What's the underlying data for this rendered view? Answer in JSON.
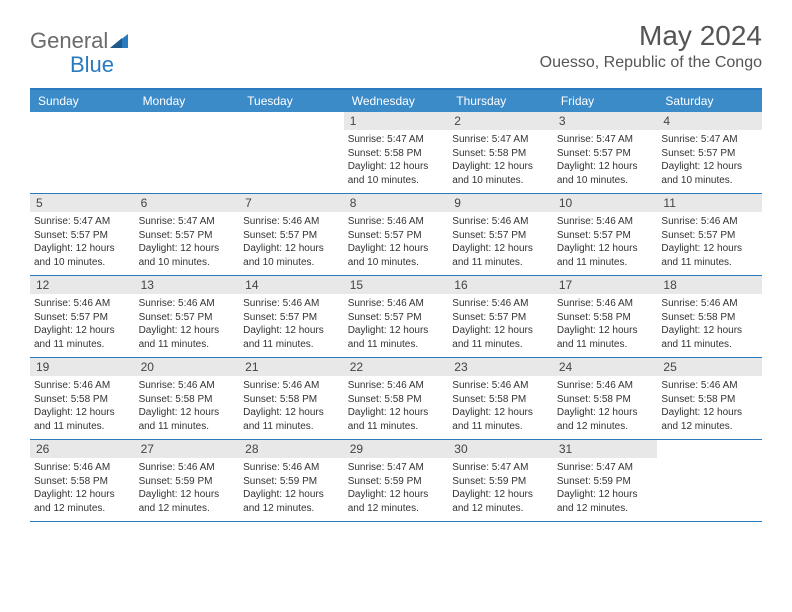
{
  "logo": {
    "general": "General",
    "blue": "Blue"
  },
  "title": "May 2024",
  "location": "Ouesso, Republic of the Congo",
  "dayNames": [
    "Sunday",
    "Monday",
    "Tuesday",
    "Wednesday",
    "Thursday",
    "Friday",
    "Saturday"
  ],
  "colors": {
    "headerBg": "#3b8bc9",
    "borderBlue": "#2a7ac0",
    "dayNumBg": "#e8e8e8"
  },
  "weeks": [
    [
      null,
      null,
      null,
      {
        "n": "1",
        "sr": "5:47 AM",
        "ss": "5:58 PM",
        "dl": "12 hours and 10 minutes."
      },
      {
        "n": "2",
        "sr": "5:47 AM",
        "ss": "5:58 PM",
        "dl": "12 hours and 10 minutes."
      },
      {
        "n": "3",
        "sr": "5:47 AM",
        "ss": "5:57 PM",
        "dl": "12 hours and 10 minutes."
      },
      {
        "n": "4",
        "sr": "5:47 AM",
        "ss": "5:57 PM",
        "dl": "12 hours and 10 minutes."
      }
    ],
    [
      {
        "n": "5",
        "sr": "5:47 AM",
        "ss": "5:57 PM",
        "dl": "12 hours and 10 minutes."
      },
      {
        "n": "6",
        "sr": "5:47 AM",
        "ss": "5:57 PM",
        "dl": "12 hours and 10 minutes."
      },
      {
        "n": "7",
        "sr": "5:46 AM",
        "ss": "5:57 PM",
        "dl": "12 hours and 10 minutes."
      },
      {
        "n": "8",
        "sr": "5:46 AM",
        "ss": "5:57 PM",
        "dl": "12 hours and 10 minutes."
      },
      {
        "n": "9",
        "sr": "5:46 AM",
        "ss": "5:57 PM",
        "dl": "12 hours and 11 minutes."
      },
      {
        "n": "10",
        "sr": "5:46 AM",
        "ss": "5:57 PM",
        "dl": "12 hours and 11 minutes."
      },
      {
        "n": "11",
        "sr": "5:46 AM",
        "ss": "5:57 PM",
        "dl": "12 hours and 11 minutes."
      }
    ],
    [
      {
        "n": "12",
        "sr": "5:46 AM",
        "ss": "5:57 PM",
        "dl": "12 hours and 11 minutes."
      },
      {
        "n": "13",
        "sr": "5:46 AM",
        "ss": "5:57 PM",
        "dl": "12 hours and 11 minutes."
      },
      {
        "n": "14",
        "sr": "5:46 AM",
        "ss": "5:57 PM",
        "dl": "12 hours and 11 minutes."
      },
      {
        "n": "15",
        "sr": "5:46 AM",
        "ss": "5:57 PM",
        "dl": "12 hours and 11 minutes."
      },
      {
        "n": "16",
        "sr": "5:46 AM",
        "ss": "5:57 PM",
        "dl": "12 hours and 11 minutes."
      },
      {
        "n": "17",
        "sr": "5:46 AM",
        "ss": "5:58 PM",
        "dl": "12 hours and 11 minutes."
      },
      {
        "n": "18",
        "sr": "5:46 AM",
        "ss": "5:58 PM",
        "dl": "12 hours and 11 minutes."
      }
    ],
    [
      {
        "n": "19",
        "sr": "5:46 AM",
        "ss": "5:58 PM",
        "dl": "12 hours and 11 minutes."
      },
      {
        "n": "20",
        "sr": "5:46 AM",
        "ss": "5:58 PM",
        "dl": "12 hours and 11 minutes."
      },
      {
        "n": "21",
        "sr": "5:46 AM",
        "ss": "5:58 PM",
        "dl": "12 hours and 11 minutes."
      },
      {
        "n": "22",
        "sr": "5:46 AM",
        "ss": "5:58 PM",
        "dl": "12 hours and 11 minutes."
      },
      {
        "n": "23",
        "sr": "5:46 AM",
        "ss": "5:58 PM",
        "dl": "12 hours and 11 minutes."
      },
      {
        "n": "24",
        "sr": "5:46 AM",
        "ss": "5:58 PM",
        "dl": "12 hours and 12 minutes."
      },
      {
        "n": "25",
        "sr": "5:46 AM",
        "ss": "5:58 PM",
        "dl": "12 hours and 12 minutes."
      }
    ],
    [
      {
        "n": "26",
        "sr": "5:46 AM",
        "ss": "5:58 PM",
        "dl": "12 hours and 12 minutes."
      },
      {
        "n": "27",
        "sr": "5:46 AM",
        "ss": "5:59 PM",
        "dl": "12 hours and 12 minutes."
      },
      {
        "n": "28",
        "sr": "5:46 AM",
        "ss": "5:59 PM",
        "dl": "12 hours and 12 minutes."
      },
      {
        "n": "29",
        "sr": "5:47 AM",
        "ss": "5:59 PM",
        "dl": "12 hours and 12 minutes."
      },
      {
        "n": "30",
        "sr": "5:47 AM",
        "ss": "5:59 PM",
        "dl": "12 hours and 12 minutes."
      },
      {
        "n": "31",
        "sr": "5:47 AM",
        "ss": "5:59 PM",
        "dl": "12 hours and 12 minutes."
      },
      null
    ]
  ],
  "labels": {
    "sunrise": "Sunrise:",
    "sunset": "Sunset:",
    "daylight": "Daylight:"
  }
}
